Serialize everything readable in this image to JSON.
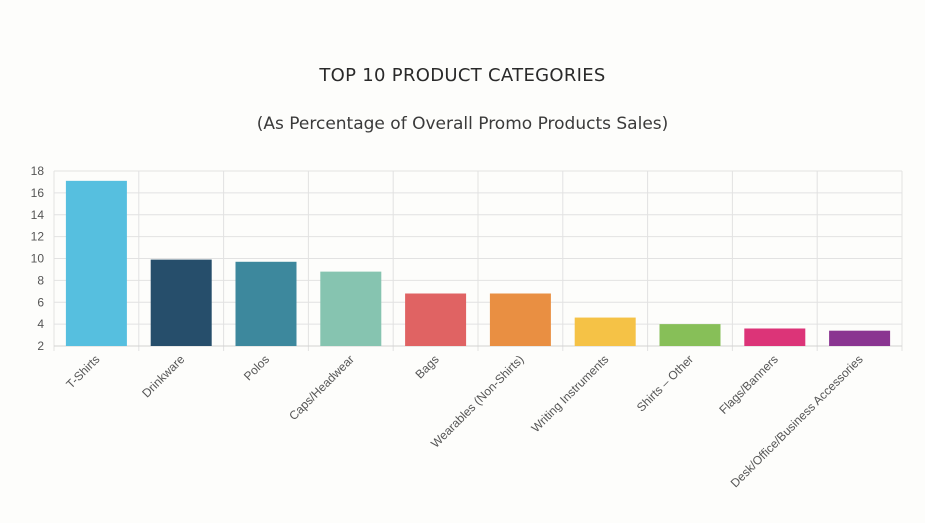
{
  "chart_data": {
    "type": "bar",
    "title": "TOP 10 PRODUCT CATEGORIES",
    "subtitle": "(As Percentage of Overall Promo Products Sales)",
    "xlabel": "",
    "ylabel": "",
    "categories": [
      "T-Shirts",
      "Drinkware",
      "Polos",
      "Caps/Headwear",
      "Bags",
      "Wearables (Non-Shirts)",
      "Writing Instruments",
      "Shirts – Other",
      "Flags/Banners",
      "Desk/Office/Business Accessories"
    ],
    "values": [
      17.1,
      9.9,
      9.7,
      8.8,
      6.8,
      6.8,
      4.6,
      4.0,
      3.6,
      3.4
    ],
    "colors": [
      "#56bfdf",
      "#264e6b",
      "#3d889d",
      "#86c4b0",
      "#e06363",
      "#e98f42",
      "#f5c246",
      "#87bf58",
      "#dc3478",
      "#8a3591"
    ],
    "ylim": [
      2,
      18
    ],
    "yticks": [
      2,
      4,
      6,
      8,
      10,
      12,
      14,
      16,
      18
    ],
    "grid": true,
    "legend": "none"
  }
}
